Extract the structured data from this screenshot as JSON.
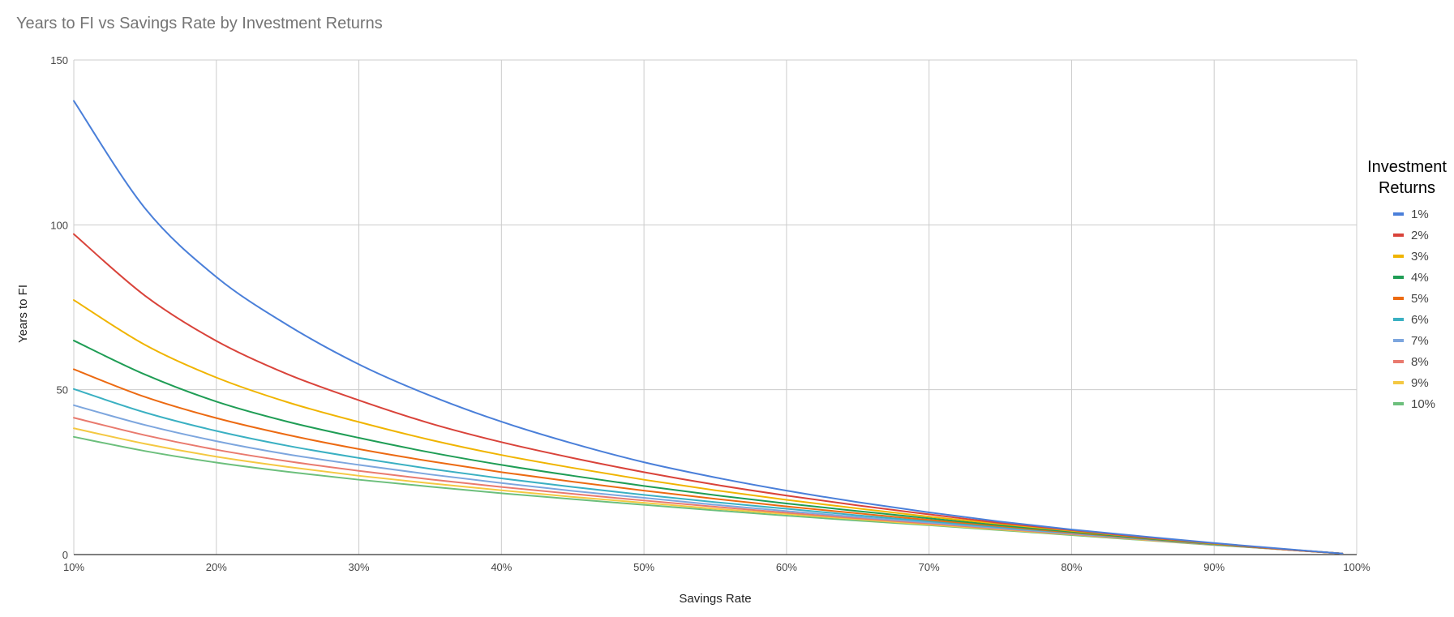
{
  "chart_data": {
    "type": "line",
    "title": "Years to FI vs Savings Rate by Investment Returns",
    "xlabel": "Savings Rate",
    "ylabel": "Years to FI",
    "xlim": [
      10,
      100
    ],
    "ylim": [
      0,
      150
    ],
    "x_ticks": [
      "10%",
      "20%",
      "30%",
      "40%",
      "50%",
      "60%",
      "70%",
      "80%",
      "90%",
      "100%"
    ],
    "y_ticks": [
      "0",
      "50",
      "100",
      "150"
    ],
    "grid": true,
    "legend": {
      "title": "Investment Returns",
      "placement": "right"
    },
    "x": [
      10,
      15,
      20,
      25,
      30,
      35,
      40,
      45,
      50,
      55,
      60,
      65,
      70,
      75,
      80,
      85,
      90,
      95,
      99
    ],
    "series": [
      {
        "name": "1%",
        "color": "#4a7fd9",
        "values": [
          137.6,
          105.0,
          84.2,
          69.6,
          57.7,
          48.2,
          40.3,
          33.7,
          28.0,
          23.4,
          19.4,
          15.9,
          12.8,
          10.0,
          7.6,
          5.5,
          3.5,
          1.7,
          0.3
        ]
      },
      {
        "name": "2%",
        "color": "#d9433a",
        "values": [
          97.2,
          78.5,
          64.8,
          54.7,
          46.8,
          39.8,
          34.1,
          29.3,
          25.0,
          21.2,
          17.9,
          14.9,
          12.2,
          9.6,
          7.4,
          5.3,
          3.4,
          1.6,
          0.3
        ]
      },
      {
        "name": "3%",
        "color": "#f0b400",
        "values": [
          77.2,
          63.6,
          53.7,
          46.2,
          40.2,
          34.8,
          30.2,
          26.3,
          22.7,
          19.5,
          16.6,
          14.0,
          11.5,
          9.3,
          7.2,
          5.2,
          3.3,
          1.6,
          0.3
        ]
      },
      {
        "name": "4%",
        "color": "#1f9d55",
        "values": [
          64.9,
          54.6,
          46.4,
          40.3,
          35.4,
          31.0,
          27.2,
          23.9,
          20.8,
          18.0,
          15.5,
          13.2,
          11.0,
          8.9,
          6.9,
          5.0,
          3.2,
          1.6,
          0.3
        ]
      },
      {
        "name": "5%",
        "color": "#ec6a12",
        "values": [
          56.2,
          47.8,
          41.4,
          36.3,
          32.0,
          28.3,
          25.0,
          22.1,
          19.4,
          16.9,
          14.6,
          12.5,
          10.5,
          8.6,
          6.7,
          4.9,
          3.2,
          1.5,
          0.3
        ]
      },
      {
        "name": "6%",
        "color": "#3ab0c2",
        "values": [
          50.2,
          43.1,
          37.5,
          33.0,
          29.3,
          26.0,
          23.1,
          20.5,
          18.1,
          15.9,
          13.9,
          11.9,
          10.1,
          8.3,
          6.6,
          4.8,
          3.1,
          1.5,
          0.3
        ]
      },
      {
        "name": "7%",
        "color": "#7da6de",
        "values": [
          45.3,
          39.3,
          34.4,
          30.4,
          27.2,
          24.3,
          21.7,
          19.3,
          17.2,
          15.1,
          13.2,
          11.4,
          9.7,
          8.0,
          6.4,
          4.7,
          3.1,
          1.5,
          0.3
        ]
      },
      {
        "name": "8%",
        "color": "#e97a6e",
        "values": [
          41.5,
          36.2,
          31.8,
          28.3,
          25.4,
          22.8,
          20.5,
          18.4,
          16.4,
          14.5,
          12.7,
          11.0,
          9.4,
          7.8,
          6.2,
          4.6,
          3.0,
          1.5,
          0.3
        ]
      },
      {
        "name": "9%",
        "color": "#f4c842",
        "values": [
          38.3,
          33.6,
          29.7,
          26.6,
          23.9,
          21.6,
          19.5,
          17.5,
          15.7,
          13.9,
          12.3,
          10.7,
          9.1,
          7.6,
          6.1,
          4.5,
          3.0,
          1.5,
          0.3
        ]
      },
      {
        "name": "10%",
        "color": "#6cbf7c",
        "values": [
          35.7,
          31.4,
          27.9,
          25.1,
          22.7,
          20.6,
          18.6,
          16.8,
          15.1,
          13.4,
          11.8,
          10.3,
          8.9,
          7.4,
          5.9,
          4.4,
          2.9,
          1.5,
          0.3
        ]
      }
    ]
  }
}
